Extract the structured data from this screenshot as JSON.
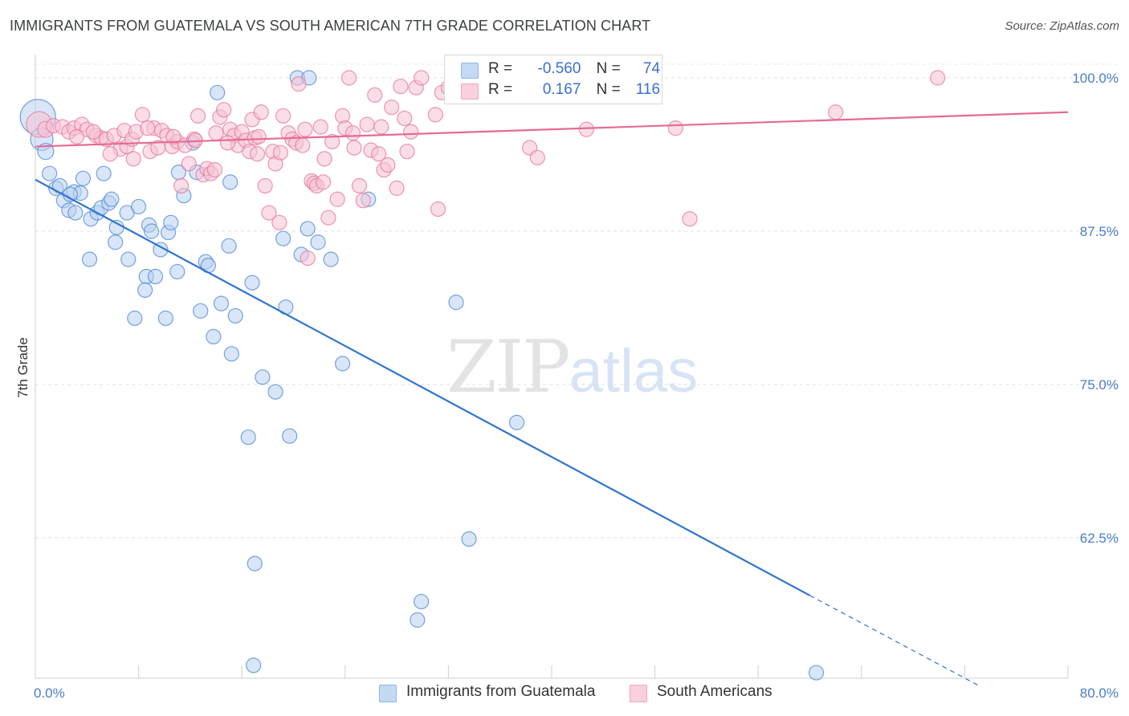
{
  "header": {
    "title": "IMMIGRANTS FROM GUATEMALA VS SOUTH AMERICAN 7TH GRADE CORRELATION CHART",
    "source": "Source: ZipAtlas.com"
  },
  "watermark": {
    "zip": "ZIP",
    "atlas": "atlas"
  },
  "legend": {
    "rows": [
      {
        "r_label": "R =",
        "r_value": "-0.560",
        "n_label": "N =",
        "n_value": "74",
        "color": "#8fb6e8"
      },
      {
        "r_label": "R =",
        "r_value": "0.167",
        "n_label": "N =",
        "n_value": "116",
        "color": "#f2a6c0"
      }
    ]
  },
  "bottom_legend": [
    {
      "label": "Immigrants from Guatemala",
      "color": "#8fb6e8"
    },
    {
      "label": "South Americans",
      "color": "#f2a6c0"
    }
  ],
  "chart_data": {
    "type": "scatter",
    "title": "IMMIGRANTS FROM GUATEMALA VS SOUTH AMERICAN 7TH GRADE CORRELATION CHART",
    "xlabel": "",
    "ylabel": "7th Grade",
    "xlim": [
      0,
      80
    ],
    "ylim": [
      51.5,
      102
    ],
    "x_tick_labels": [
      "0.0%",
      "80.0%"
    ],
    "y_ticks": [
      62.5,
      75.0,
      87.5,
      100.0
    ],
    "y_tick_labels": [
      "62.5%",
      "75.0%",
      "87.5%",
      "100.0%"
    ],
    "grid": true,
    "series": [
      {
        "name": "Immigrants from Guatemala",
        "color": "#4a86d8",
        "fill": "#b9d1f1",
        "trend": {
          "x0": 0,
          "y0": 91.7,
          "x1": 60,
          "y1": 57.8,
          "dash_to_x": 73,
          "dash_to_y": 50.5,
          "color": "#2f74d0"
        },
        "points": [
          [
            0.2,
            96.8,
            22
          ],
          [
            0.5,
            95.0,
            14
          ],
          [
            0.8,
            94.0,
            10
          ],
          [
            1.1,
            92.2,
            9
          ],
          [
            1.6,
            91.0,
            9
          ],
          [
            1.9,
            91.2,
            9
          ],
          [
            2.2,
            90.0,
            9
          ],
          [
            2.6,
            89.2,
            9
          ],
          [
            3.0,
            90.7,
            9
          ],
          [
            3.5,
            90.6,
            9
          ],
          [
            2.7,
            90.5,
            9
          ],
          [
            3.7,
            91.8,
            9
          ],
          [
            4.3,
            88.5,
            9
          ],
          [
            4.8,
            89.0,
            9
          ],
          [
            5.1,
            89.4,
            9
          ],
          [
            5.3,
            92.2,
            9
          ],
          [
            5.7,
            89.8,
            9
          ],
          [
            5.9,
            90.1,
            9
          ],
          [
            4.2,
            85.2,
            9
          ],
          [
            6.3,
            87.8,
            9
          ],
          [
            7.1,
            89.0,
            9
          ],
          [
            6.2,
            86.6,
            9
          ],
          [
            7.2,
            85.2,
            9
          ],
          [
            8.0,
            89.5,
            9
          ],
          [
            8.8,
            88.0,
            9
          ],
          [
            8.6,
            83.8,
            9
          ],
          [
            8.5,
            82.7,
            9
          ],
          [
            9.3,
            83.8,
            9
          ],
          [
            9.7,
            86.0,
            9
          ],
          [
            7.7,
            80.4,
            9
          ],
          [
            10.3,
            87.4,
            9
          ],
          [
            10.5,
            88.2,
            9
          ],
          [
            10.1,
            80.4,
            9
          ],
          [
            11.0,
            84.2,
            9
          ],
          [
            11.1,
            92.3,
            9
          ],
          [
            11.5,
            90.4,
            9
          ],
          [
            12.2,
            94.7,
            9
          ],
          [
            12.8,
            81.0,
            9
          ],
          [
            13.2,
            85.0,
            9
          ],
          [
            13.4,
            84.7,
            9
          ],
          [
            13.8,
            78.9,
            9
          ],
          [
            14.1,
            98.8,
            9
          ],
          [
            14.4,
            81.6,
            9
          ],
          [
            15.0,
            86.3,
            9
          ],
          [
            15.1,
            91.5,
            9
          ],
          [
            15.2,
            77.5,
            9
          ],
          [
            15.5,
            80.6,
            9
          ],
          [
            16.8,
            83.3,
            9
          ],
          [
            16.5,
            70.7,
            9
          ],
          [
            17.0,
            60.4,
            9
          ],
          [
            17.6,
            75.6,
            9
          ],
          [
            18.6,
            74.4,
            9
          ],
          [
            19.2,
            86.9,
            9
          ],
          [
            19.4,
            81.3,
            9
          ],
          [
            19.7,
            70.8,
            9
          ],
          [
            20.3,
            100.0,
            9
          ],
          [
            20.6,
            85.6,
            9
          ],
          [
            21.2,
            100.0,
            9
          ],
          [
            21.1,
            87.7,
            9
          ],
          [
            21.9,
            86.6,
            9
          ],
          [
            22.9,
            85.2,
            9
          ],
          [
            23.8,
            76.7,
            9
          ],
          [
            25.8,
            90.1,
            9
          ],
          [
            29.9,
            57.3,
            9
          ],
          [
            29.6,
            55.8,
            9
          ],
          [
            32.6,
            81.7,
            9
          ],
          [
            33.6,
            62.4,
            9
          ],
          [
            37.3,
            71.9,
            9
          ],
          [
            16.9,
            52.1,
            9
          ],
          [
            60.5,
            51.5,
            9
          ],
          [
            36.8,
            100.0,
            9
          ],
          [
            12.5,
            92.3,
            9
          ],
          [
            9.0,
            87.5,
            9
          ],
          [
            3.1,
            89.0,
            9
          ]
        ]
      },
      {
        "name": "South Americans",
        "color": "#e8739b",
        "fill": "#f6c3d4",
        "trend": {
          "x0": 0,
          "y0": 94.4,
          "x1": 80,
          "y1": 97.2,
          "color": "#e56b94"
        },
        "points": [
          [
            0.3,
            96.2,
            16
          ],
          [
            0.8,
            95.8,
            10
          ],
          [
            1.4,
            96.1,
            9
          ],
          [
            2.1,
            96.0,
            9
          ],
          [
            2.6,
            95.6,
            9
          ],
          [
            3.0,
            95.9,
            9
          ],
          [
            3.6,
            96.2,
            9
          ],
          [
            4.0,
            95.8,
            9
          ],
          [
            4.7,
            95.3,
            9
          ],
          [
            5.1,
            95.1,
            9
          ],
          [
            5.5,
            95.0,
            9
          ],
          [
            6.1,
            95.3,
            9
          ],
          [
            6.6,
            94.2,
            9
          ],
          [
            6.9,
            95.7,
            9
          ],
          [
            7.1,
            94.4,
            9
          ],
          [
            7.5,
            95.0,
            9
          ],
          [
            7.6,
            93.4,
            9
          ],
          [
            7.8,
            95.6,
            9
          ],
          [
            8.3,
            97.0,
            9
          ],
          [
            8.9,
            94.0,
            9
          ],
          [
            9.2,
            95.9,
            9
          ],
          [
            9.5,
            94.3,
            9
          ],
          [
            9.8,
            95.7,
            9
          ],
          [
            10.2,
            95.3,
            9
          ],
          [
            10.6,
            94.4,
            9
          ],
          [
            11.0,
            94.8,
            9
          ],
          [
            11.3,
            91.2,
            9
          ],
          [
            11.6,
            94.5,
            9
          ],
          [
            11.9,
            93.0,
            9
          ],
          [
            12.3,
            95.0,
            9
          ],
          [
            12.4,
            94.9,
            9
          ],
          [
            12.6,
            96.9,
            9
          ],
          [
            13.0,
            92.1,
            9
          ],
          [
            13.3,
            92.6,
            9
          ],
          [
            13.6,
            92.2,
            9
          ],
          [
            14.0,
            95.5,
            9
          ],
          [
            14.3,
            96.8,
            9
          ],
          [
            14.6,
            97.4,
            9
          ],
          [
            15.1,
            95.8,
            9
          ],
          [
            15.4,
            95.3,
            9
          ],
          [
            15.7,
            94.5,
            9
          ],
          [
            16.0,
            95.6,
            9
          ],
          [
            16.3,
            94.9,
            9
          ],
          [
            16.6,
            94.0,
            9
          ],
          [
            16.8,
            96.6,
            9
          ],
          [
            17.0,
            95.1,
            9
          ],
          [
            17.2,
            93.8,
            9
          ],
          [
            17.5,
            97.2,
            9
          ],
          [
            17.8,
            91.2,
            9
          ],
          [
            18.1,
            89.0,
            9
          ],
          [
            18.4,
            94.0,
            9
          ],
          [
            18.6,
            93.0,
            9
          ],
          [
            18.9,
            88.2,
            9
          ],
          [
            19.2,
            96.9,
            9
          ],
          [
            19.6,
            95.5,
            9
          ],
          [
            19.9,
            95.0,
            9
          ],
          [
            20.2,
            94.7,
            9
          ],
          [
            20.4,
            99.5,
            9
          ],
          [
            20.7,
            94.5,
            9
          ],
          [
            20.9,
            95.8,
            9
          ],
          [
            21.1,
            85.3,
            9
          ],
          [
            21.4,
            91.6,
            9
          ],
          [
            21.6,
            91.4,
            9
          ],
          [
            21.8,
            91.2,
            9
          ],
          [
            22.1,
            96.0,
            9
          ],
          [
            22.4,
            93.4,
            9
          ],
          [
            22.7,
            88.6,
            9
          ],
          [
            23.0,
            94.8,
            9
          ],
          [
            23.4,
            90.1,
            9
          ],
          [
            23.8,
            96.9,
            9
          ],
          [
            24.0,
            95.9,
            9
          ],
          [
            24.3,
            100.0,
            9
          ],
          [
            24.7,
            94.3,
            9
          ],
          [
            25.1,
            91.2,
            9
          ],
          [
            25.4,
            90.0,
            9
          ],
          [
            25.7,
            96.2,
            9
          ],
          [
            26.0,
            94.1,
            9
          ],
          [
            26.3,
            98.6,
            9
          ],
          [
            26.6,
            93.8,
            9
          ],
          [
            27.0,
            92.5,
            9
          ],
          [
            27.3,
            92.9,
            9
          ],
          [
            27.6,
            97.6,
            9
          ],
          [
            28.0,
            91.0,
            9
          ],
          [
            28.3,
            99.3,
            9
          ],
          [
            28.6,
            96.7,
            9
          ],
          [
            28.8,
            94.0,
            9
          ],
          [
            29.1,
            95.6,
            9
          ],
          [
            29.5,
            99.2,
            9
          ],
          [
            29.9,
            100.0,
            9
          ],
          [
            31.2,
            89.3,
            9
          ],
          [
            31.5,
            98.8,
            9
          ],
          [
            32.0,
            99.2,
            9
          ],
          [
            33.0,
            99.5,
            9
          ],
          [
            33.3,
            100.0,
            9
          ],
          [
            34.2,
            99.9,
            9
          ],
          [
            35.0,
            99.6,
            9
          ],
          [
            38.3,
            94.3,
            9
          ],
          [
            38.9,
            93.5,
            9
          ],
          [
            42.7,
            95.8,
            9
          ],
          [
            49.6,
            95.9,
            9
          ],
          [
            50.7,
            88.5,
            9
          ],
          [
            62.0,
            97.2,
            9
          ],
          [
            69.9,
            100.0,
            9
          ],
          [
            5.8,
            93.8,
            9
          ],
          [
            4.5,
            95.6,
            9
          ],
          [
            3.2,
            95.2,
            9
          ],
          [
            13.9,
            92.5,
            9
          ],
          [
            22.3,
            91.5,
            9
          ],
          [
            10.7,
            95.2,
            9
          ],
          [
            8.7,
            95.9,
            9
          ],
          [
            24.6,
            95.5,
            9
          ],
          [
            14.9,
            94.7,
            9
          ],
          [
            19.0,
            93.9,
            9
          ],
          [
            26.8,
            96.0,
            9
          ],
          [
            31.0,
            97.0,
            9
          ],
          [
            17.3,
            95.2,
            9
          ]
        ]
      }
    ]
  }
}
